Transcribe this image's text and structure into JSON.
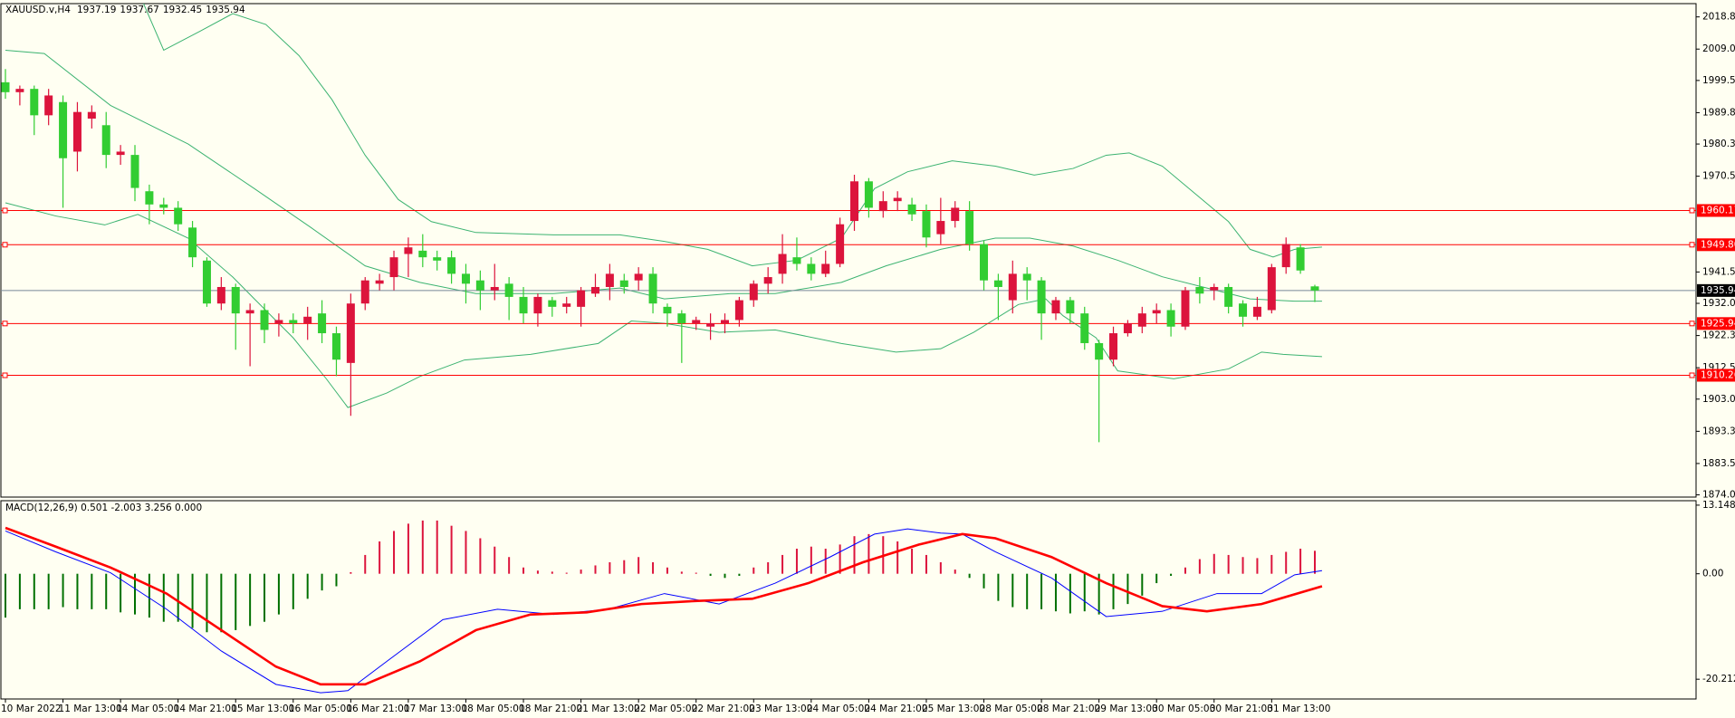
{
  "chart_data": [
    {
      "type": "candlestick",
      "title": "XAUUSD.v,H4",
      "categories": [
        "10 Mar 2022",
        null,
        null,
        null,
        "11 Mar 13:00",
        null,
        null,
        null,
        "14 Mar 05:00",
        null,
        null,
        null,
        "14 Mar 21:00",
        null,
        null,
        null,
        "15 Mar 13:00",
        null,
        null,
        null,
        "16 Mar 05:00",
        null,
        null,
        null,
        "16 Mar 21:00",
        null,
        null,
        null,
        "17 Mar 13:00",
        null,
        null,
        null,
        "18 Mar 05:00",
        null,
        null,
        null,
        "18 Mar 21:00",
        null,
        null,
        null,
        "21 Mar 13:00",
        null,
        null,
        null,
        "22 Mar 05:00",
        null,
        null,
        null,
        "22 Mar 21:00",
        null,
        null,
        null,
        "23 Mar 13:00",
        null,
        null,
        null,
        "24 Mar 05:00",
        null,
        null,
        null,
        "24 Mar 21:00",
        null,
        null,
        null,
        "25 Mar 13:00",
        null,
        null,
        null,
        "28 Mar 05:00",
        null,
        null,
        null,
        "28 Mar 21:00",
        null,
        null,
        null,
        "29 Mar 13:00",
        null,
        null,
        null,
        "30 Mar 05:00",
        null,
        null,
        null,
        "30 Mar 21:00",
        null,
        null,
        null,
        "31 Mar 13:00",
        null,
        null,
        null
      ],
      "open": [
        1999,
        1996,
        1997,
        1989,
        1993,
        1978,
        1988,
        1986,
        1977,
        1977,
        1966,
        1962,
        1961,
        1955,
        1945,
        1932,
        1937,
        1929,
        1930,
        1926,
        1927,
        1926,
        1929,
        1923,
        1914,
        1932,
        1938,
        1940,
        1947,
        1948,
        1946,
        1946,
        1941,
        1939,
        1936,
        1938,
        1934,
        1929,
        1933,
        1931,
        1931,
        1935,
        1937,
        1939,
        1939,
        1941,
        1931,
        1929,
        1926,
        1925,
        1926,
        1927,
        1933,
        1938,
        1941,
        1946,
        1944,
        1941,
        1944,
        1957,
        1969,
        1960,
        1963,
        1962,
        1960,
        1953,
        1957,
        1960,
        1950,
        1939,
        1933,
        1941,
        1939,
        1929,
        1933,
        1929,
        1920,
        1915,
        1923,
        1925,
        1929,
        1930,
        1925,
        1937,
        1936,
        1937,
        1932,
        1928,
        1930,
        1943,
        1949,
        1937.19
      ],
      "high": [
        2003,
        1998,
        1998,
        1997,
        1995,
        1993,
        1992,
        1990,
        1980,
        1980,
        1968,
        1964,
        1963,
        1957,
        1946,
        1940,
        1938,
        1932,
        1932,
        1929,
        1929,
        1931,
        1933,
        1925,
        1935,
        1940,
        1941,
        1948,
        1952,
        1953,
        1948,
        1948,
        1944,
        1942,
        1944,
        1940,
        1937,
        1935,
        1934,
        1934,
        1937,
        1941,
        1944,
        1941,
        1943,
        1943,
        1932,
        1930,
        1928,
        1929,
        1929,
        1934,
        1939,
        1943,
        1953,
        1952,
        1946,
        1948,
        1958,
        1971,
        1970,
        1966,
        1966,
        1964,
        1962,
        1964,
        1963,
        1963,
        1951,
        1941,
        1945,
        1943,
        1940,
        1934,
        1934,
        1931,
        1921,
        1925,
        1927,
        1931,
        1932,
        1932,
        1937,
        1940,
        1938,
        1938,
        1933,
        1934,
        1944,
        1952,
        1950,
        1937.67
      ],
      "low": [
        1994,
        1992,
        1983,
        1986,
        1961,
        1972,
        1985,
        1973,
        1974,
        1963,
        1956,
        1959,
        1954,
        1943,
        1931,
        1930,
        1918,
        1913,
        1920,
        1922,
        1923,
        1921,
        1920,
        1910,
        1898,
        1930,
        1936,
        1936,
        1940,
        1943,
        1942,
        1938,
        1932,
        1930,
        1933,
        1927,
        1926,
        1925,
        1928,
        1929,
        1925,
        1934,
        1933,
        1935,
        1936,
        1929,
        1925,
        1914,
        1924,
        1921,
        1923,
        1925,
        1931,
        1935,
        1938,
        1942,
        1939,
        1940,
        1943,
        1954,
        1958,
        1958,
        1960,
        1957,
        1949,
        1950,
        1955,
        1948,
        1936,
        1927,
        1929,
        1933,
        1921,
        1927,
        1926,
        1918,
        1890,
        1913,
        1922,
        1923,
        1926,
        1922,
        1924,
        1932,
        1933,
        1929,
        1925,
        1927,
        1929,
        1941,
        1941,
        1932.45
      ],
      "close": [
        1996,
        1997,
        1989,
        1995,
        1976,
        1990,
        1990,
        1977,
        1978,
        1967,
        1962,
        1961,
        1956,
        1946,
        1932,
        1937,
        1929,
        1930,
        1924,
        1927,
        1926,
        1928,
        1923,
        1915,
        1932,
        1939,
        1939,
        1946,
        1949,
        1946,
        1945,
        1941,
        1938,
        1936,
        1937,
        1934,
        1929,
        1934,
        1931,
        1932,
        1936,
        1937,
        1941,
        1937,
        1941,
        1932,
        1929,
        1926,
        1927,
        1926,
        1927,
        1933,
        1938,
        1940,
        1947,
        1944,
        1941,
        1944,
        1956,
        1969,
        1961,
        1963,
        1964,
        1959,
        1952,
        1957,
        1961,
        1950,
        1939,
        1937,
        1941,
        1939,
        1929,
        1933,
        1929,
        1920,
        1915,
        1923,
        1926,
        1929,
        1930,
        1925,
        1936,
        1935,
        1937,
        1931,
        1928,
        1931,
        1943,
        1950,
        1942,
        1935.94
      ],
      "up_color": "#dc143c",
      "down_color": "#32cd32",
      "ylim": [
        1873.38,
        2022.82
      ],
      "yticks": [
        {
          "value": 2018.8,
          "label": "2018.80"
        },
        2009.05,
        1999.55,
        {
          "value": 1989.8,
          "label": "1989.80"
        },
        {
          "value": 1980.3,
          "label": "1980.30"
        },
        1970.55,
        1941.55,
        1932.05,
        {
          "value": 1922.3,
          "label": "1922.30"
        },
        1912.55,
        1903.05,
        {
          "value": 1893.3,
          "label": "1893.30"
        },
        1883.55,
        1874.05
      ],
      "bands": [
        {
          "color": "#3cb371",
          "x": [
            9.5,
            11,
            13.5,
            15.8,
            18.1,
            20.4,
            22.7,
            25,
            27.3,
            29.6,
            32.7,
            38.1,
            42.7,
            45.8,
            48.8,
            51.9,
            55,
            58.1,
            60.4,
            62.7,
            65.8,
            68.8,
            71.5,
            74.2,
            76.5,
            78.1,
            80.4,
            82.7,
            85,
            86.5,
            88.1,
            89.6,
            91.5
          ],
          "values": [
            2023.8,
            2008.7,
            2014.4,
            2019.8,
            2016.5,
            2007.1,
            1993.7,
            1976.9,
            1963.5,
            1956.8,
            1953.5,
            1952.8,
            1952.8,
            1950.8,
            1948.4,
            1943.4,
            1945.1,
            1951.8,
            1966.8,
            1971.9,
            1975.2,
            1973.6,
            1970.9,
            1972.9,
            1976.9,
            1977.6,
            1973.6,
            1965.2,
            1956.8,
            1948.4,
            1946.1,
            1948.4,
            1949.1
          ]
        },
        {
          "color": "#3cb371",
          "x": [
            0,
            2.7,
            7.3,
            12.7,
            17.3,
            21.2,
            25,
            28.8,
            32.7,
            38.1,
            42.7,
            45.8,
            50.4,
            53.5,
            58.1,
            61.2,
            65,
            68.8,
            71.2,
            74.2,
            77.3,
            80.4,
            83.5,
            86.5,
            89.6,
            91.5
          ],
          "values": [
            2008.7,
            2007.7,
            1992,
            1980.3,
            1966.8,
            1955.1,
            1943.4,
            1938.4,
            1935,
            1935,
            1936.7,
            1933.4,
            1935,
            1935,
            1938.4,
            1943.4,
            1948.4,
            1951.8,
            1951.8,
            1949.4,
            1945.1,
            1940.1,
            1936.7,
            1933.4,
            1932.7,
            1932.7
          ]
        },
        {
          "color": "#3cb371",
          "x": [
            0,
            3.5,
            6.9,
            9.2,
            12.7,
            15.8,
            17.3,
            20,
            22.3,
            23.8,
            26.5,
            28.8,
            31.9,
            36.5,
            41.2,
            43.5,
            45.8,
            49.6,
            53.5,
            58.1,
            61.9,
            65,
            67.3,
            70.4,
            72.3,
            73.5,
            75.8,
            77.3,
            81.2,
            85,
            87.3,
            88.8,
            91.5
          ],
          "values": [
            1962.5,
            1958.5,
            1955.8,
            1959,
            1951.8,
            1940,
            1933.4,
            1921.6,
            1909.2,
            1900.5,
            1904.9,
            1909.9,
            1914.9,
            1916.6,
            1919.9,
            1926.7,
            1926,
            1923.3,
            1924,
            1919.9,
            1917.3,
            1918.3,
            1923.3,
            1931.7,
            1933.4,
            1928.3,
            1921.6,
            1911.6,
            1909.2,
            1912.2,
            1917.3,
            1916.6,
            1915.9
          ]
        }
      ],
      "levels": [
        1960.17,
        {
          "value": 1949.8,
          "label": "1949.80"
        },
        1925.94,
        1910.26
      ],
      "level_color": "#ff0000",
      "price_line_color": "#778899"
    },
    {
      "type": "macd",
      "title": "MACD(12,26,9) 0.501 -2.003 3.256 0.000",
      "histogram": [
        -8.4,
        -6.8,
        -6.8,
        -6.8,
        -6.4,
        -6.8,
        -6.8,
        -6.8,
        -7.4,
        -7.8,
        -8.4,
        -9.2,
        -9.2,
        -10.4,
        -11.2,
        -11.2,
        -10.8,
        -10,
        -9.2,
        -7.8,
        -6.8,
        -4.8,
        -3.2,
        -2.4,
        0.3,
        3.6,
        6.2,
        8.2,
        9.6,
        10.2,
        10.2,
        9.2,
        8.2,
        6.8,
        5.2,
        3.2,
        1.2,
        0.6,
        0.4,
        0.2,
        0.8,
        1.6,
        2.2,
        2.6,
        3.2,
        2.2,
        1.2,
        0.4,
        0.2,
        -0.4,
        -0.8,
        -0.4,
        1.2,
        2.2,
        3.6,
        4.8,
        5.2,
        4.8,
        5.6,
        7.2,
        7.6,
        7.2,
        6.2,
        4.8,
        3.6,
        2.2,
        0.8,
        -0.8,
        -2.8,
        -5.2,
        -6.4,
        -6.8,
        -6.8,
        -7.2,
        -7.6,
        -7.2,
        -7.8,
        -6.8,
        -5.8,
        -4.2,
        -1.8,
        -0.4,
        1.2,
        2.8,
        3.8,
        3.6,
        3.2,
        3,
        3.6,
        4.2,
        4.8,
        4.4
      ],
      "positive_color": "#dc143c",
      "negative_color": "#007000",
      "series": [
        {
          "color": "#0000ff",
          "x": [
            0,
            3.5,
            7.3,
            11.2,
            15,
            18.8,
            21.9,
            23.8,
            26.5,
            30.4,
            34.2,
            38.1,
            41.9,
            45.8,
            49.6,
            53.5,
            57.3,
            60.4,
            62.7,
            65,
            66.5,
            68.8,
            72.7,
            76.5,
            80.4,
            84.2,
            87.3,
            89.6,
            91.5
          ],
          "values": [
            8.2,
            4.2,
            0.2,
            -6.8,
            -14.8,
            -21.2,
            -22.8,
            -22.4,
            -16.8,
            -8.8,
            -6.8,
            -7.8,
            -6.8,
            -3.8,
            -5.8,
            -1.8,
            3.2,
            7.6,
            8.6,
            7.8,
            7.6,
            4.2,
            -0.8,
            -8.2,
            -7.2,
            -3.8,
            -3.8,
            -0.2,
            0.6
          ]
        },
        {
          "color": "#ff0000",
          "x": [
            0,
            3.5,
            7.3,
            11.2,
            15,
            18.8,
            21.9,
            25,
            28.8,
            32.7,
            36.5,
            40.4,
            44.2,
            48.1,
            51.9,
            55.8,
            59.6,
            63.5,
            66.5,
            68.8,
            72.7,
            76.5,
            80.4,
            83.5,
            87.3,
            91.5
          ],
          "values": [
            8.8,
            5.2,
            1.2,
            -3.8,
            -10.8,
            -17.8,
            -21.2,
            -21.2,
            -16.8,
            -10.8,
            -7.8,
            -7.4,
            -5.8,
            -5.2,
            -4.8,
            -1.8,
            2.2,
            5.6,
            7.6,
            6.8,
            3.2,
            -1.8,
            -6.2,
            -7.2,
            -5.8,
            -2.4
          ]
        }
      ],
      "ylim": [
        -24,
        14
      ],
      "yticks": [
        13.148,
        {
          "value": 0,
          "label": "0.00"
        },
        -20.212
      ]
    }
  ]
}
